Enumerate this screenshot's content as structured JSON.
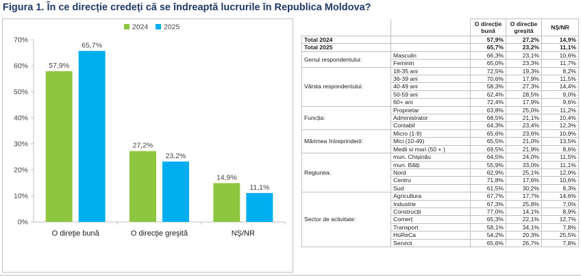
{
  "figure": {
    "title": "Figura  1. În ce direcție credeți că se îndreaptă lucrurile în Republica Moldova?"
  },
  "colors": {
    "series_2024": "#8dc63f",
    "series_2025": "#00aeef",
    "title": "#1f3864"
  },
  "chart_data": {
    "type": "bar",
    "categories": [
      "O direţie bună",
      "O direcţie greşită",
      "NŞ/NR"
    ],
    "series": [
      {
        "name": "2024",
        "color": "#8dc63f",
        "values": [
          57.9,
          27.2,
          14.9
        ],
        "labels": [
          "57,9%",
          "27,2%",
          "14,9%"
        ]
      },
      {
        "name": "2025",
        "color": "#00aeef",
        "values": [
          65.7,
          23.2,
          11.1
        ],
        "labels": [
          "65,7%",
          "23,2%",
          "11,1%"
        ]
      }
    ],
    "yticks": [
      0,
      10,
      20,
      30,
      40,
      50,
      60,
      70
    ],
    "ytick_labels": [
      "0%",
      "10%",
      "20%",
      "30%",
      "40%",
      "50%",
      "60%",
      "70%"
    ],
    "ylim": [
      0,
      70
    ],
    "grid": false,
    "legend": "top-center"
  },
  "table": {
    "headers": [
      "O direcție bună",
      "O direcție greșită",
      "NȘ/NR"
    ],
    "totals": [
      {
        "label": "Total 2024",
        "values": [
          "57,9%",
          "27,2%",
          "14,9%"
        ]
      },
      {
        "label": "Total 2025",
        "values": [
          "65,7%",
          "23,2%",
          "11,1%"
        ]
      }
    ],
    "groups": [
      {
        "label": "Genul respondentului:",
        "rows": [
          {
            "label": "Masculin",
            "values": [
              "66,3%",
              "23,1%",
              "10,6%"
            ]
          },
          {
            "label": "Feminin",
            "values": [
              "65,0%",
              "23,3%",
              "11,7%"
            ]
          }
        ]
      },
      {
        "label": "Vârsta respondentului:",
        "rows": [
          {
            "label": "18-35 ani",
            "values": [
              "72,5%",
              "19,3%",
              "8,2%"
            ]
          },
          {
            "label": "36-39 ani",
            "values": [
              "70,6%",
              "17,9%",
              "11,5%"
            ]
          },
          {
            "label": "40-49 ani",
            "values": [
              "58,3%",
              "27,3%",
              "14,4%"
            ]
          },
          {
            "label": "50-59 ani",
            "values": [
              "62,4%",
              "28,5%",
              "9,0%"
            ]
          },
          {
            "label": "60+ ani",
            "values": [
              "72,4%",
              "17,9%",
              "9,6%"
            ]
          }
        ]
      },
      {
        "label": "Funcția:",
        "rows": [
          {
            "label": "Proprietar",
            "values": [
              "63,8%",
              "25,0%",
              "11,2%"
            ]
          },
          {
            "label": "Administrator",
            "values": [
              "68,5%",
              "21,1%",
              "10,4%"
            ]
          },
          {
            "label": "Contabil",
            "values": [
              "64,3%",
              "23,4%",
              "12,3%"
            ]
          }
        ]
      },
      {
        "label": "Mărimea întreprinderii:",
        "rows": [
          {
            "label": "Micro (1-9)",
            "values": [
              "65,6%",
              "23,6%",
              "10,9%"
            ]
          },
          {
            "label": "Mici (10-49)",
            "values": [
              "65,5%",
              "21,0%",
              "13,5%"
            ]
          },
          {
            "label": "Medii si mari (50 + )",
            "values": [
              "69,5%",
              "21,9%",
              "8,6%"
            ]
          }
        ]
      },
      {
        "label": "Regiunea:",
        "rows": [
          {
            "label": "mun. Chișinău",
            "values": [
              "64,5%",
              "24,0%",
              "11,5%"
            ]
          },
          {
            "label": "mun. Bălți",
            "values": [
              "55,9%",
              "33,0%",
              "11,1%"
            ]
          },
          {
            "label": "Nord",
            "values": [
              "62,9%",
              "25,1%",
              "12,0%"
            ]
          },
          {
            "label": "Centru",
            "values": [
              "71,8%",
              "17,6%",
              "10,6%"
            ]
          },
          {
            "label": "Sud",
            "values": [
              "61,5%",
              "30,2%",
              "8,3%"
            ]
          }
        ]
      },
      {
        "label": "Sector de activitate:",
        "rows": [
          {
            "label": "Agricultura",
            "values": [
              "67,7%",
              "17,7%",
              "14,6%"
            ]
          },
          {
            "label": "Industrie",
            "values": [
              "67,3%",
              "25,8%",
              "7,0%"
            ]
          },
          {
            "label": "Construcții",
            "values": [
              "77,0%",
              "14,1%",
              "8,9%"
            ]
          },
          {
            "label": "Comerț",
            "values": [
              "65,3%",
              "22,1%",
              "12,7%"
            ]
          },
          {
            "label": "Transport",
            "values": [
              "58,1%",
              "34,1%",
              "7,8%"
            ]
          },
          {
            "label": "HoReCa",
            "values": [
              "54,2%",
              "20,3%",
              "25,5%"
            ]
          },
          {
            "label": "Servicii",
            "values": [
              "65,6%",
              "26,7%",
              "7,8%"
            ]
          }
        ]
      }
    ]
  }
}
